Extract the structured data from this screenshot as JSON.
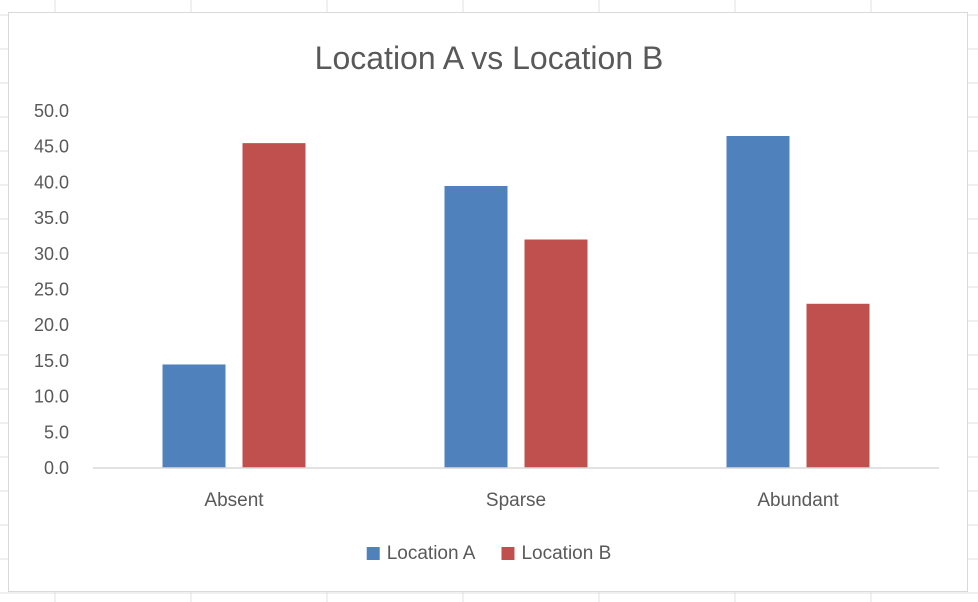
{
  "chart_data": {
    "type": "bar",
    "title": "Location A vs Location B",
    "xlabel": "",
    "ylabel": "",
    "categories": [
      "Absent",
      "Sparse",
      "Abundant"
    ],
    "series": [
      {
        "name": "Location A",
        "color": "#4f81bd",
        "values": [
          14.5,
          39.5,
          46.5
        ]
      },
      {
        "name": "Location B",
        "color": "#c0504d",
        "values": [
          45.5,
          32.0,
          23.0
        ]
      }
    ],
    "ylim": [
      0,
      50
    ],
    "yticks": [
      "0.0",
      "5.0",
      "10.0",
      "15.0",
      "20.0",
      "25.0",
      "30.0",
      "35.0",
      "40.0",
      "45.0",
      "50.0"
    ],
    "grid": false,
    "legend_position": "bottom"
  }
}
